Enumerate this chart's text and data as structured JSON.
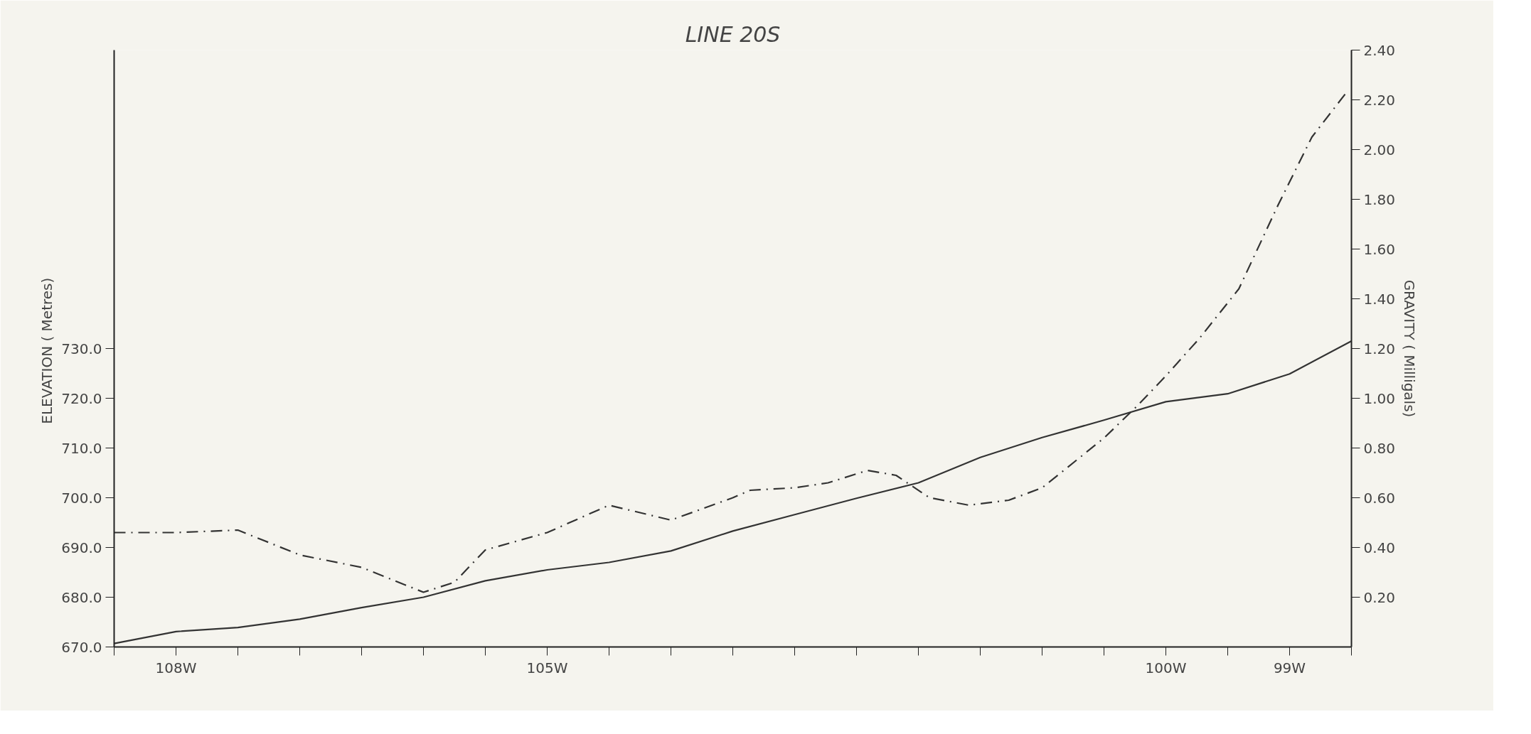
{
  "chart_data": {
    "type": "line",
    "title": "LINE 20S",
    "ylabel": "ELEVATION  ( Metres)",
    "y2label": "GRAVITY ( Milligals)",
    "xlim": [
      -108.5,
      -98.5
    ],
    "xticks": [
      {
        "value": -108.5,
        "label": null
      },
      {
        "value": -108,
        "label": "108W"
      },
      {
        "value": -107.5,
        "label": null
      },
      {
        "value": -107,
        "label": null
      },
      {
        "value": -106.5,
        "label": null
      },
      {
        "value": -106,
        "label": null
      },
      {
        "value": -105.5,
        "label": null
      },
      {
        "value": -105,
        "label": "105W"
      },
      {
        "value": -104.5,
        "label": null
      },
      {
        "value": -104,
        "label": null
      },
      {
        "value": -103.5,
        "label": null
      },
      {
        "value": -103,
        "label": null
      },
      {
        "value": -102.5,
        "label": null
      },
      {
        "value": -102,
        "label": null
      },
      {
        "value": -101.5,
        "label": null
      },
      {
        "value": -101,
        "label": null
      },
      {
        "value": -100.5,
        "label": null
      },
      {
        "value": -100,
        "label": "100W"
      },
      {
        "value": -99.5,
        "label": null
      },
      {
        "value": -99,
        "label": "99W"
      },
      {
        "value": -98.5,
        "label": null
      }
    ],
    "ylim": [
      670,
      790
    ],
    "yticks": [
      {
        "value": 670,
        "label": "670.0"
      },
      {
        "value": 680,
        "label": "680.0"
      },
      {
        "value": 690,
        "label": "690.0"
      },
      {
        "value": 700,
        "label": "700.0"
      },
      {
        "value": 710,
        "label": "710.0"
      },
      {
        "value": 720,
        "label": "720.0"
      },
      {
        "value": 730,
        "label": "730.0"
      }
    ],
    "y2lim": [
      0,
      2.4
    ],
    "y2ticks": [
      {
        "value": 0.2,
        "label": "0.20"
      },
      {
        "value": 0.4,
        "label": "0.40"
      },
      {
        "value": 0.6,
        "label": "0.60"
      },
      {
        "value": 0.8,
        "label": "0.80"
      },
      {
        "value": 1.0,
        "label": "1.00"
      },
      {
        "value": 1.2,
        "label": "1.20"
      },
      {
        "value": 1.4,
        "label": "1.40"
      },
      {
        "value": 1.6,
        "label": "1.60"
      },
      {
        "value": 1.8,
        "label": "1.80"
      },
      {
        "value": 2.0,
        "label": "2.00"
      },
      {
        "value": 2.2,
        "label": "2.20"
      },
      {
        "value": 2.4,
        "label": "2.40"
      }
    ],
    "series": [
      {
        "color": "#333333",
        "line_style": "solid",
        "x": [
          -108.5,
          -108,
          -107.5,
          -107,
          -106.5,
          -106,
          -105.5,
          -105,
          -104.5,
          -104,
          -103.5,
          -103,
          -102.5,
          -102,
          -101.5,
          -101,
          -100.5,
          -100,
          -99.5,
          -99,
          -98.5
        ],
        "values": [
          670.7,
          673.1,
          673.9,
          675.6,
          677.9,
          680.0,
          683.3,
          685.5,
          687.0,
          689.3,
          693.3,
          696.6,
          699.9,
          703.0,
          708.1,
          712.1,
          715.6,
          719.3,
          720.9,
          724.9,
          731.5
        ]
      },
      {
        "color": "#333333",
        "line_style": "dashed",
        "axis": "y2",
        "x": [
          -108.5,
          -108,
          -107.5,
          -107,
          -106.5,
          -106.25,
          -106,
          -105.75,
          -105.5,
          -105,
          -104.5,
          -104,
          -103.5,
          -103.36,
          -103,
          -102.73,
          -102.41,
          -102.18,
          -101.91,
          -101.59,
          -101.27,
          -101,
          -100.5,
          -100.23,
          -100,
          -99.73,
          -99.41,
          -99.09,
          -98.82,
          -98.54
        ],
        "values": [
          0.46,
          0.46,
          0.47,
          0.37,
          0.32,
          0.27,
          0.22,
          0.26,
          0.39,
          0.46,
          0.57,
          0.51,
          0.6,
          0.63,
          0.64,
          0.66,
          0.71,
          0.69,
          0.6,
          0.57,
          0.59,
          0.64,
          0.84,
          0.97,
          1.09,
          1.24,
          1.44,
          1.78,
          2.05,
          2.23
        ]
      }
    ]
  }
}
